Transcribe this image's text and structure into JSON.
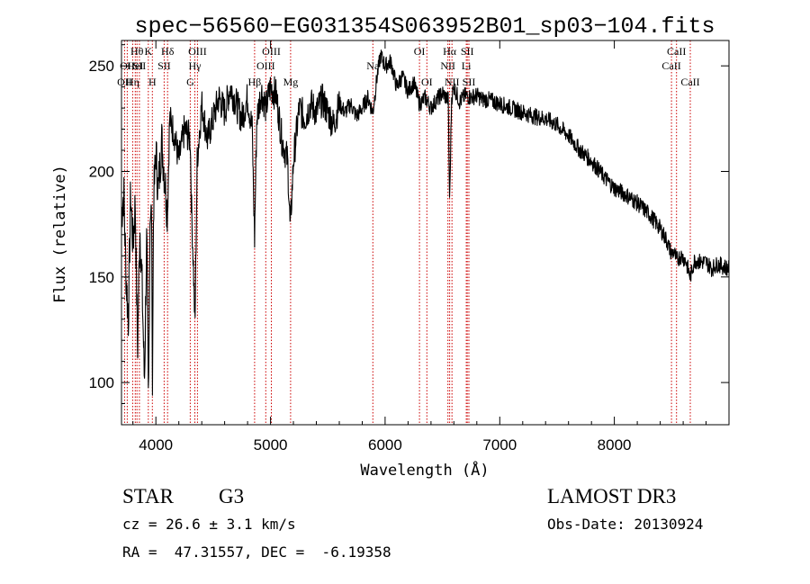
{
  "chart_data": {
    "type": "line",
    "title": "spec−56560−EG031354S063952B01_sp03−104.fits",
    "xlabel": "Wavelength (Å)",
    "ylabel": "Flux (relative)",
    "xlim": [
      3700,
      9000
    ],
    "ylim": [
      80,
      262
    ],
    "xticks": [
      4000,
      5000,
      6000,
      7000,
      8000
    ],
    "yticks": [
      100,
      150,
      200,
      250
    ],
    "grid": false,
    "line_color": "#000000",
    "marker_color": "#cc0000",
    "anchors": [
      [
        3700,
        180
      ],
      [
        3720,
        190
      ],
      [
        3740,
        150
      ],
      [
        3760,
        130
      ],
      [
        3780,
        190
      ],
      [
        3800,
        165
      ],
      [
        3820,
        185
      ],
      [
        3840,
        115
      ],
      [
        3860,
        175
      ],
      [
        3880,
        145
      ],
      [
        3900,
        100
      ],
      [
        3920,
        170
      ],
      [
        3935,
        86
      ],
      [
        3950,
        185
      ],
      [
        3965,
        175
      ],
      [
        3968,
        90
      ],
      [
        3980,
        185
      ],
      [
        4000,
        210
      ],
      [
        4020,
        190
      ],
      [
        4050,
        215
      ],
      [
        4080,
        195
      ],
      [
        4101,
        180
      ],
      [
        4120,
        225
      ],
      [
        4160,
        218
      ],
      [
        4200,
        205
      ],
      [
        4250,
        220
      ],
      [
        4300,
        215
      ],
      [
        4310,
        185
      ],
      [
        4330,
        150
      ],
      [
        4341,
        125
      ],
      [
        4360,
        205
      ],
      [
        4400,
        232
      ],
      [
        4450,
        215
      ],
      [
        4500,
        225
      ],
      [
        4550,
        235
      ],
      [
        4600,
        228
      ],
      [
        4650,
        240
      ],
      [
        4700,
        232
      ],
      [
        4750,
        225
      ],
      [
        4800,
        235
      ],
      [
        4840,
        220
      ],
      [
        4861,
        168
      ],
      [
        4880,
        225
      ],
      [
        4920,
        238
      ],
      [
        4960,
        230
      ],
      [
        5000,
        240
      ],
      [
        5050,
        236
      ],
      [
        5100,
        215
      ],
      [
        5150,
        205
      ],
      [
        5172,
        172
      ],
      [
        5200,
        205
      ],
      [
        5250,
        230
      ],
      [
        5300,
        225
      ],
      [
        5350,
        232
      ],
      [
        5400,
        228
      ],
      [
        5450,
        234
      ],
      [
        5500,
        228
      ],
      [
        5550,
        222
      ],
      [
        5600,
        232
      ],
      [
        5650,
        228
      ],
      [
        5700,
        232
      ],
      [
        5750,
        226
      ],
      [
        5800,
        230
      ],
      [
        5850,
        235
      ],
      [
        5893,
        228
      ],
      [
        5930,
        245
      ],
      [
        5960,
        255
      ],
      [
        6000,
        250
      ],
      [
        6050,
        252
      ],
      [
        6100,
        240
      ],
      [
        6150,
        245
      ],
      [
        6200,
        238
      ],
      [
        6250,
        242
      ],
      [
        6300,
        232
      ],
      [
        6350,
        235
      ],
      [
        6400,
        230
      ],
      [
        6450,
        234
      ],
      [
        6500,
        237
      ],
      [
        6550,
        234
      ],
      [
        6563,
        185
      ],
      [
        6580,
        235
      ],
      [
        6600,
        240
      ],
      [
        6650,
        233
      ],
      [
        6700,
        236
      ],
      [
        6750,
        235
      ],
      [
        6800,
        236
      ],
      [
        6850,
        234
      ],
      [
        6900,
        234
      ],
      [
        7000,
        232
      ],
      [
        7100,
        230
      ],
      [
        7200,
        228
      ],
      [
        7300,
        226
      ],
      [
        7400,
        225
      ],
      [
        7500,
        222
      ],
      [
        7600,
        217
      ],
      [
        7700,
        210
      ],
      [
        7800,
        205
      ],
      [
        7900,
        198
      ],
      [
        8000,
        192
      ],
      [
        8100,
        189
      ],
      [
        8200,
        185
      ],
      [
        8300,
        180
      ],
      [
        8400,
        173
      ],
      [
        8450,
        168
      ],
      [
        8498,
        161
      ],
      [
        8520,
        162
      ],
      [
        8542,
        158
      ],
      [
        8580,
        160
      ],
      [
        8620,
        158
      ],
      [
        8662,
        150
      ],
      [
        8700,
        158
      ],
      [
        8750,
        157
      ],
      [
        8800,
        157
      ],
      [
        8850,
        154
      ],
      [
        8900,
        156
      ],
      [
        8950,
        155
      ],
      [
        9000,
        154
      ]
    ],
    "lines": [
      {
        "wl": 3727,
        "label": "OII",
        "row": 2
      },
      {
        "wl": 3750,
        "label": "OII",
        "row": 1
      },
      {
        "wl": 3797,
        "label": "Hη",
        "row": 2
      },
      {
        "wl": 3820,
        "label": "HeI",
        "row": 1
      },
      {
        "wl": 3835,
        "label": "Hθ",
        "row": 0
      },
      {
        "wl": 3856,
        "label": "SII",
        "row": 1
      },
      {
        "wl": 3934,
        "label": "K",
        "row": 0
      },
      {
        "wl": 3969,
        "label": "H",
        "row": 2
      },
      {
        "wl": 4072,
        "label": "SII",
        "row": 1
      },
      {
        "wl": 4102,
        "label": "Hδ",
        "row": 0
      },
      {
        "wl": 4300,
        "label": "G",
        "row": 2
      },
      {
        "wl": 4340,
        "label": "Hγ",
        "row": 1
      },
      {
        "wl": 4363,
        "label": "OIII",
        "row": 0
      },
      {
        "wl": 4861,
        "label": "Hβ",
        "row": 2
      },
      {
        "wl": 4959,
        "label": "OIII",
        "row": 1
      },
      {
        "wl": 5007,
        "label": "OIII",
        "row": 0
      },
      {
        "wl": 5175,
        "label": "Mg",
        "row": 2
      },
      {
        "wl": 5893,
        "label": "Na",
        "row": 1
      },
      {
        "wl": 6300,
        "label": "OI",
        "row": 0
      },
      {
        "wl": 6364,
        "label": "OI",
        "row": 2
      },
      {
        "wl": 6548,
        "label": "NII",
        "row": 1
      },
      {
        "wl": 6563,
        "label": "Hα",
        "row": 0
      },
      {
        "wl": 6583,
        "label": "NII",
        "row": 2
      },
      {
        "wl": 6708,
        "label": "Li",
        "row": 1
      },
      {
        "wl": 6717,
        "label": "SII",
        "row": 0
      },
      {
        "wl": 6731,
        "label": "SII",
        "row": 2
      },
      {
        "wl": 8498,
        "label": "CaII",
        "row": 1
      },
      {
        "wl": 8542,
        "label": "CaII",
        "row": 0
      },
      {
        "wl": 8662,
        "label": "CaII",
        "row": 2
      }
    ]
  },
  "info": {
    "object_class": "STAR",
    "subclass": "G3",
    "survey": "LAMOST DR3",
    "redshift_text": "cz = 26.6 ± 3.1 km/s",
    "obs_date": "Obs-Date: 20130924",
    "coords": "RA =  47.31557, DEC =  -6.19358"
  }
}
